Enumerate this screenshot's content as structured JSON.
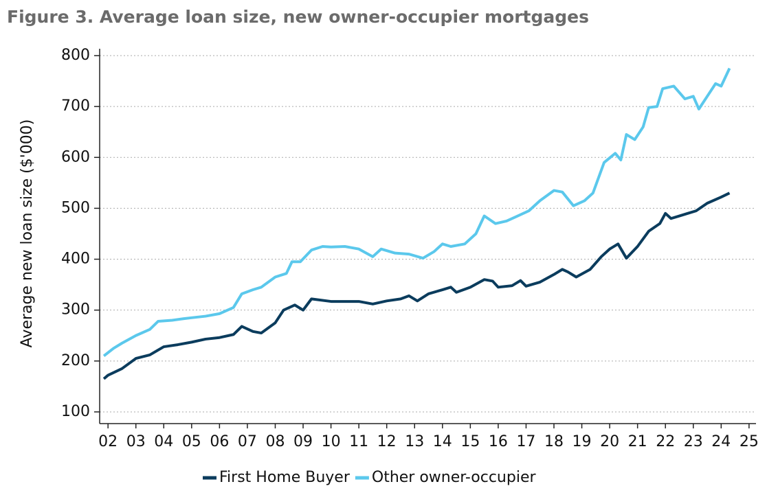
{
  "chart_data": {
    "type": "line",
    "title": "Figure 3. Average loan size, new owner-occupier mortgages",
    "y_label": "Average new loan size ($'000)",
    "xlim": [
      2002.2,
      2025.75
    ],
    "xticks": [
      {
        "value": 2002.5,
        "label": "02"
      },
      {
        "value": 2003.5,
        "label": "03"
      },
      {
        "value": 2004.5,
        "label": "04"
      },
      {
        "value": 2005.5,
        "label": "05"
      },
      {
        "value": 2006.5,
        "label": "06"
      },
      {
        "value": 2007.5,
        "label": "07"
      },
      {
        "value": 2008.5,
        "label": "08"
      },
      {
        "value": 2009.5,
        "label": "09"
      },
      {
        "value": 2010.5,
        "label": "10"
      },
      {
        "value": 2011.5,
        "label": "11"
      },
      {
        "value": 2012.5,
        "label": "12"
      },
      {
        "value": 2013.5,
        "label": "13"
      },
      {
        "value": 2014.5,
        "label": "14"
      },
      {
        "value": 2015.5,
        "label": "15"
      },
      {
        "value": 2016.5,
        "label": "16"
      },
      {
        "value": 2017.5,
        "label": "17"
      },
      {
        "value": 2018.5,
        "label": "18"
      },
      {
        "value": 2019.5,
        "label": "19"
      },
      {
        "value": 2020.5,
        "label": "20"
      },
      {
        "value": 2021.5,
        "label": "21"
      },
      {
        "value": 2022.5,
        "label": "22"
      },
      {
        "value": 2023.5,
        "label": "23"
      },
      {
        "value": 2024.5,
        "label": "24"
      },
      {
        "value": 2025.5,
        "label": "25"
      }
    ],
    "ylim": [
      77,
      800
    ],
    "yticks": [
      100,
      200,
      300,
      400,
      500,
      600,
      700,
      800
    ],
    "grid": true,
    "legend": "bottom",
    "series": [
      {
        "name": "First Home Buyer",
        "color": "#0b3c5d",
        "x": [
          2002.35,
          2002.5,
          2003.0,
          2003.5,
          2004.0,
          2004.5,
          2005.0,
          2005.5,
          2006.0,
          2006.5,
          2007.0,
          2007.3,
          2007.7,
          2008.0,
          2008.5,
          2008.8,
          2009.2,
          2009.5,
          2009.8,
          2010.5,
          2011.0,
          2011.5,
          2012.0,
          2012.5,
          2013.0,
          2013.3,
          2013.6,
          2014.0,
          2014.5,
          2014.8,
          2015.0,
          2015.5,
          2016.0,
          2016.3,
          2016.5,
          2017.0,
          2017.3,
          2017.5,
          2018.0,
          2018.5,
          2018.8,
          2019.0,
          2019.3,
          2019.8,
          2020.2,
          2020.5,
          2020.8,
          2021.1,
          2021.5,
          2021.9,
          2022.3,
          2022.5,
          2022.7,
          2023.0,
          2023.3,
          2023.6,
          2024.0,
          2024.5,
          2024.8
        ],
        "values": [
          165,
          172,
          185,
          205,
          212,
          228,
          232,
          237,
          243,
          246,
          252,
          268,
          258,
          255,
          275,
          300,
          310,
          300,
          322,
          317,
          317,
          317,
          312,
          318,
          322,
          328,
          318,
          332,
          340,
          345,
          335,
          345,
          360,
          357,
          345,
          348,
          358,
          347,
          355,
          370,
          380,
          375,
          365,
          380,
          405,
          420,
          430,
          402,
          425,
          455,
          470,
          490,
          480,
          485,
          490,
          495,
          510,
          522,
          530
        ]
      },
      {
        "name": "Other owner-occupier",
        "color": "#5bc8ec",
        "x": [
          2002.35,
          2002.7,
          2003.0,
          2003.5,
          2004.0,
          2004.3,
          2004.8,
          2005.2,
          2005.5,
          2006.0,
          2006.5,
          2007.0,
          2007.3,
          2007.7,
          2008.0,
          2008.5,
          2008.9,
          2009.1,
          2009.4,
          2009.8,
          2010.2,
          2010.5,
          2011.0,
          2011.5,
          2012.0,
          2012.3,
          2012.8,
          2013.3,
          2013.8,
          2014.2,
          2014.5,
          2014.8,
          2015.3,
          2015.7,
          2016.0,
          2016.4,
          2016.8,
          2017.2,
          2017.6,
          2018.0,
          2018.5,
          2018.8,
          2019.2,
          2019.6,
          2019.9,
          2020.3,
          2020.7,
          2020.9,
          2021.1,
          2021.4,
          2021.7,
          2021.9,
          2022.2,
          2022.4,
          2022.8,
          2023.2,
          2023.5,
          2023.7,
          2024.0,
          2024.3,
          2024.5,
          2024.8
        ],
        "values": [
          210,
          225,
          235,
          250,
          262,
          278,
          280,
          283,
          285,
          288,
          293,
          305,
          332,
          340,
          345,
          365,
          372,
          395,
          395,
          418,
          425,
          424,
          425,
          420,
          405,
          420,
          412,
          410,
          402,
          415,
          430,
          425,
          430,
          450,
          485,
          470,
          475,
          485,
          495,
          515,
          535,
          532,
          505,
          515,
          530,
          590,
          608,
          595,
          645,
          635,
          660,
          698,
          700,
          735,
          740,
          715,
          720,
          695,
          720,
          745,
          740,
          775
        ]
      }
    ]
  }
}
